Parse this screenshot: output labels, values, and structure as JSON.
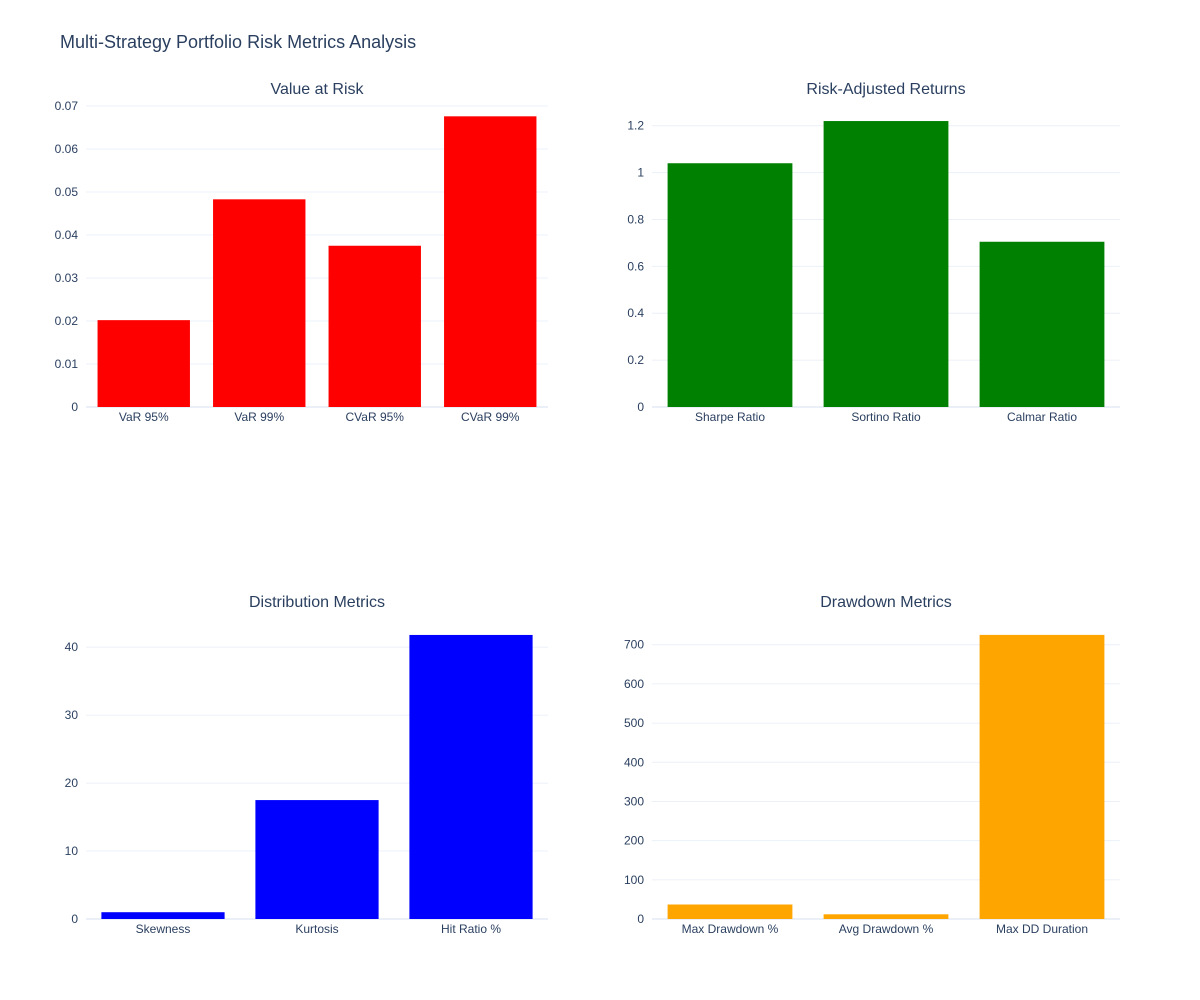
{
  "title": "Multi-Strategy Portfolio Risk Metrics Analysis",
  "chart_data": [
    {
      "type": "bar",
      "title": "Value at Risk",
      "categories": [
        "VaR 95%",
        "VaR 99%",
        "CVaR 95%",
        "CVaR 99%"
      ],
      "values": [
        0.0202,
        0.0483,
        0.0375,
        0.0676
      ],
      "ylim": [
        0,
        0.07
      ],
      "yticks": [
        0,
        0.01,
        0.02,
        0.03,
        0.04,
        0.05,
        0.06,
        0.07
      ],
      "ytick_labels": [
        "0",
        "0.01",
        "0.02",
        "0.03",
        "0.04",
        "0.05",
        "0.06",
        "0.07"
      ],
      "color": "#ff0000",
      "grid": true
    },
    {
      "type": "bar",
      "title": "Risk-Adjusted Returns",
      "categories": [
        "Sharpe Ratio",
        "Sortino Ratio",
        "Calmar Ratio"
      ],
      "values": [
        1.04,
        1.22,
        0.705
      ],
      "ylim": [
        0,
        1.2842
      ],
      "yticks": [
        0,
        0.2,
        0.4,
        0.6,
        0.8,
        1,
        1.2
      ],
      "ytick_labels": [
        "0",
        "0.2",
        "0.4",
        "0.6",
        "0.8",
        "1",
        "1.2"
      ],
      "color": "#008000",
      "grid": true
    },
    {
      "type": "bar",
      "title": "Distribution Metrics",
      "categories": [
        "Skewness",
        "Kurtosis",
        "Hit Ratio %"
      ],
      "values": [
        1.0,
        17.5,
        41.8
      ],
      "ylim": [
        0,
        44.0
      ],
      "yticks": [
        0,
        10,
        20,
        30,
        40
      ],
      "ytick_labels": [
        "0",
        "10",
        "20",
        "30",
        "40"
      ],
      "color": "#0000ff",
      "grid": true
    },
    {
      "type": "bar",
      "title": "Drawdown Metrics",
      "categories": [
        "Max Drawdown %",
        "Avg Drawdown %",
        "Max DD Duration"
      ],
      "values": [
        37,
        12,
        725
      ],
      "ylim": [
        0,
        763
      ],
      "yticks": [
        0,
        100,
        200,
        300,
        400,
        500,
        600,
        700
      ],
      "ytick_labels": [
        "0",
        "100",
        "200",
        "300",
        "400",
        "500",
        "600",
        "700"
      ],
      "color": "#ffa500",
      "grid": true
    }
  ]
}
